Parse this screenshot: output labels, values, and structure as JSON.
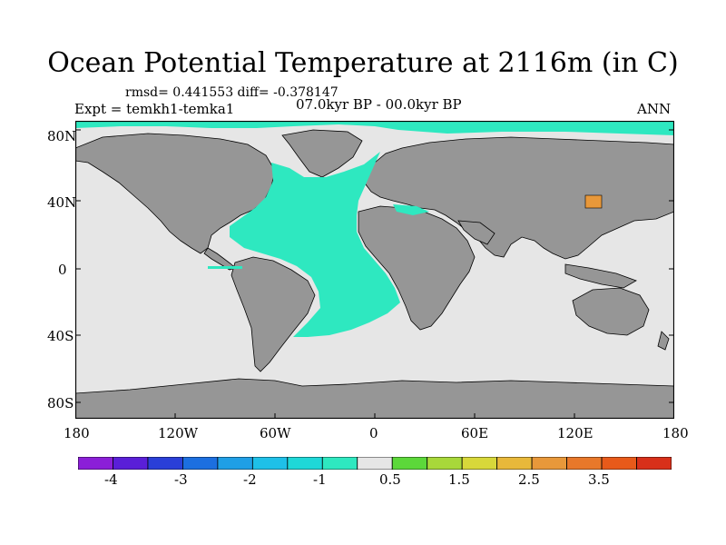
{
  "title": "Ocean Potential Temperature at 2116m (in C)",
  "stats": "rmsd= 0.441553 diff= -0.378147",
  "expt": "Expt = temkh1-temka1",
  "period": "07.0kyr BP - 00.0kyr BP",
  "season": "ANN",
  "lat_labels": [
    "80N",
    "40N",
    "0",
    "40S",
    "80S"
  ],
  "lon_labels": [
    "180",
    "120W",
    "60W",
    "0",
    "60E",
    "120E",
    "180"
  ],
  "colorbar": {
    "colors": [
      "#8b1fd8",
      "#5a1fd8",
      "#2a3fd8",
      "#1c6fe0",
      "#1f9fe6",
      "#1ec0e8",
      "#1ed8d8",
      "#2ee8c0",
      "#e6e6e6",
      "#5cd83a",
      "#a8d83a",
      "#d8d83a",
      "#e8b83a",
      "#e8983a",
      "#e8782a",
      "#e85a1a",
      "#d8301a"
    ],
    "labels": [
      "-4",
      "-3",
      "-2",
      "-1",
      "0.5",
      "1.5",
      "2.5",
      "3.5"
    ]
  },
  "map_colors": {
    "ocean_neutral": "#e6e6e6",
    "land": "#969696",
    "cold_anomaly": "#2ee8c0",
    "warm_anomaly": "#e8983a"
  }
}
